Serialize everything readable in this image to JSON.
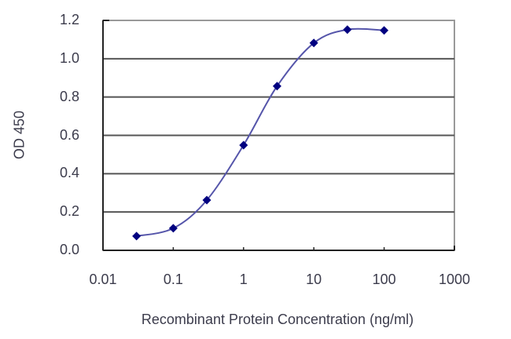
{
  "chart_data": {
    "type": "line",
    "title": "",
    "xlabel": "Recombinant Protein Concentration (ng/ml)",
    "ylabel": "OD 450",
    "xscale": "log",
    "xlim": [
      0.01,
      1000
    ],
    "ylim": [
      0.0,
      1.2
    ],
    "grid": {
      "horizontal": true,
      "vertical": false
    },
    "legend": null,
    "x_ticks": [
      "0.01",
      "0.1",
      "1",
      "10",
      "100",
      "1000"
    ],
    "x_tick_values": [
      0.01,
      0.1,
      1,
      10,
      100,
      1000
    ],
    "y_ticks": [
      "0.0",
      "0.2",
      "0.4",
      "0.6",
      "0.8",
      "1.0",
      "1.2"
    ],
    "y_tick_values": [
      0.0,
      0.2,
      0.4,
      0.6,
      0.8,
      1.0,
      1.2
    ],
    "series": [
      {
        "name": "OD 450",
        "marker": "diamond",
        "line": "smooth",
        "color": "#000080",
        "line_color": "#5555aa",
        "x": [
          0.03,
          0.1,
          0.3,
          1,
          3,
          10,
          30,
          100
        ],
        "values": [
          0.074,
          0.115,
          0.262,
          0.549,
          0.857,
          1.082,
          1.152,
          1.148
        ]
      }
    ]
  },
  "colors": {
    "background": "#ffffff",
    "axis": "#222222",
    "gridline": "#555555",
    "frame": "#999999",
    "marker": "#000080",
    "curve": "#5555aa",
    "text": "#3c3c4c"
  }
}
